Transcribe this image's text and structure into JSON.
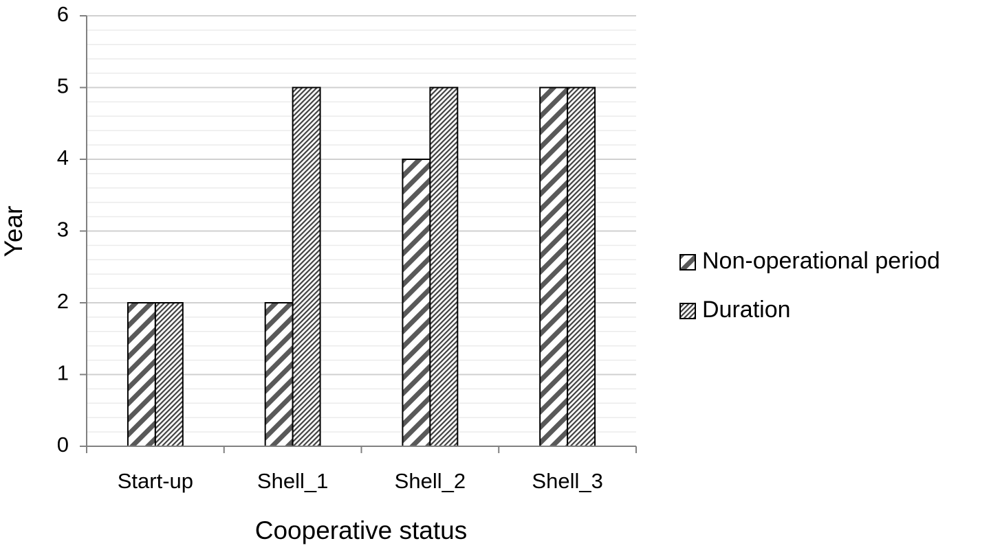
{
  "chart_data": {
    "type": "bar",
    "x_label": "Cooperative status",
    "y_label": "Year",
    "categories": [
      "Start-up",
      "Shell_1",
      "Shell_2",
      "Shell_3"
    ],
    "series": [
      {
        "name": "Non-operational period",
        "color": "#595959",
        "values": [
          2,
          2,
          4,
          5
        ]
      },
      {
        "name": "Duration",
        "color": "#404040",
        "values": [
          2,
          5,
          5,
          5
        ]
      }
    ],
    "ylim": [
      0,
      6
    ],
    "yticks": [
      0,
      1,
      2,
      3,
      4,
      5,
      6
    ],
    "minor_yticks": [
      0.2,
      0.4,
      0.6,
      0.8,
      1.2,
      1.4,
      1.6,
      1.8,
      2.2,
      2.4,
      2.6,
      2.8,
      3.2,
      3.4,
      3.6,
      3.8,
      4.2,
      4.4,
      4.6,
      4.8,
      5.2,
      5.4,
      5.6,
      5.8
    ],
    "grid": true,
    "legend": "right"
  }
}
